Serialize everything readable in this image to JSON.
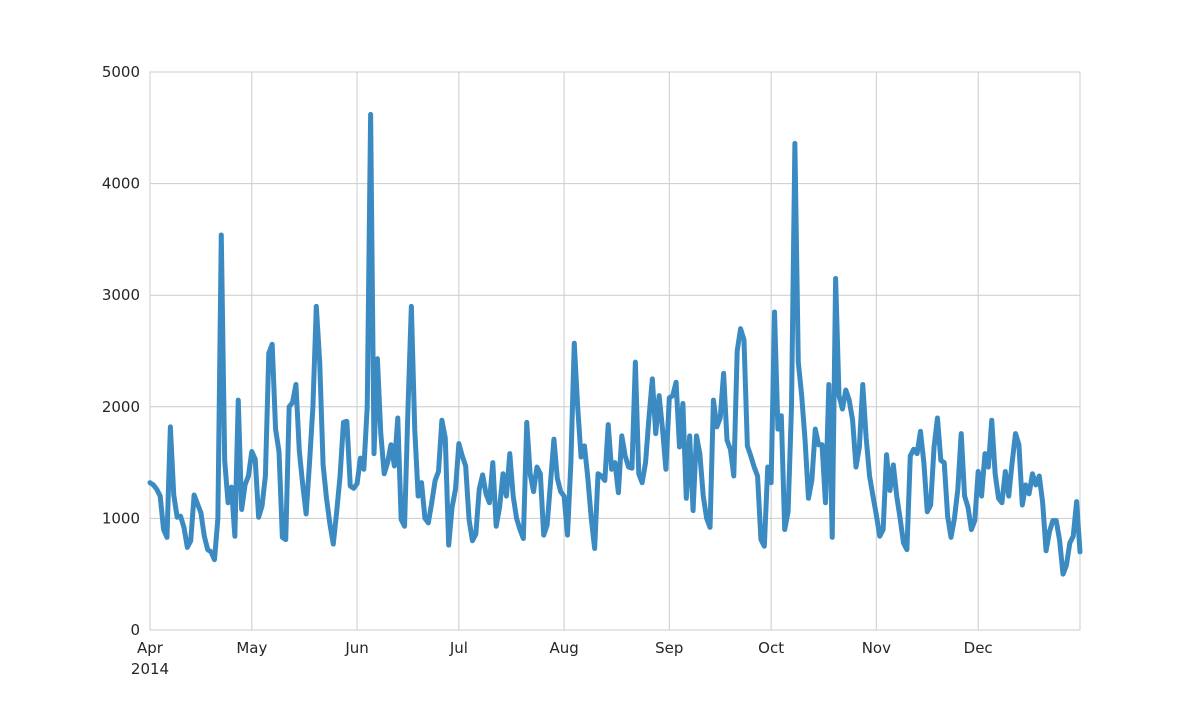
{
  "chart_data": {
    "type": "line",
    "title": "",
    "xlabel": "",
    "ylabel": "",
    "x_ticks": [
      {
        "label": "Apr",
        "date": "2014-04-01"
      },
      {
        "label": "May",
        "date": "2014-05-01"
      },
      {
        "label": "Jun",
        "date": "2014-06-01"
      },
      {
        "label": "Jul",
        "date": "2014-07-01"
      },
      {
        "label": "Aug",
        "date": "2014-08-01"
      },
      {
        "label": "Sep",
        "date": "2014-09-01"
      },
      {
        "label": "Oct",
        "date": "2014-10-01"
      },
      {
        "label": "Nov",
        "date": "2014-11-01"
      },
      {
        "label": "Dec",
        "date": "2014-12-01"
      }
    ],
    "x_year_label": "2014",
    "y_ticks": [
      0,
      1000,
      2000,
      3000,
      4000,
      5000
    ],
    "xlim": [
      "2014-04-01",
      "2014-12-31"
    ],
    "ylim": [
      0,
      5000
    ],
    "grid": true,
    "color": "#3b8bc2",
    "series": [
      {
        "points": [
          [
            "2014-04-01",
            1320
          ],
          [
            "2014-04-02",
            1300
          ],
          [
            "2014-04-03",
            1260
          ],
          [
            "2014-04-04",
            1200
          ],
          [
            "2014-04-05",
            900
          ],
          [
            "2014-04-06",
            830
          ],
          [
            "2014-04-07",
            1820
          ],
          [
            "2014-04-08",
            1210
          ],
          [
            "2014-04-09",
            1010
          ],
          [
            "2014-04-10",
            1020
          ],
          [
            "2014-04-11",
            920
          ],
          [
            "2014-04-12",
            740
          ],
          [
            "2014-04-13",
            800
          ],
          [
            "2014-04-14",
            1210
          ],
          [
            "2014-04-15",
            1130
          ],
          [
            "2014-04-16",
            1050
          ],
          [
            "2014-04-17",
            840
          ],
          [
            "2014-04-18",
            720
          ],
          [
            "2014-04-19",
            700
          ],
          [
            "2014-04-20",
            630
          ],
          [
            "2014-04-21",
            1000
          ],
          [
            "2014-04-22",
            3540
          ],
          [
            "2014-04-23",
            1520
          ],
          [
            "2014-04-24",
            1140
          ],
          [
            "2014-04-25",
            1280
          ],
          [
            "2014-04-26",
            840
          ],
          [
            "2014-04-27",
            2060
          ],
          [
            "2014-04-28",
            1080
          ],
          [
            "2014-04-29",
            1300
          ],
          [
            "2014-04-30",
            1380
          ],
          [
            "2014-05-01",
            1600
          ],
          [
            "2014-05-02",
            1530
          ],
          [
            "2014-05-03",
            1010
          ],
          [
            "2014-05-04",
            1110
          ],
          [
            "2014-05-05",
            1380
          ],
          [
            "2014-05-06",
            2480
          ],
          [
            "2014-05-07",
            2560
          ],
          [
            "2014-05-08",
            1800
          ],
          [
            "2014-05-09",
            1600
          ],
          [
            "2014-05-10",
            830
          ],
          [
            "2014-05-11",
            810
          ],
          [
            "2014-05-12",
            2000
          ],
          [
            "2014-05-13",
            2040
          ],
          [
            "2014-05-14",
            2200
          ],
          [
            "2014-05-15",
            1600
          ],
          [
            "2014-05-16",
            1300
          ],
          [
            "2014-05-17",
            1040
          ],
          [
            "2014-05-18",
            1500
          ],
          [
            "2014-05-19",
            2000
          ],
          [
            "2014-05-20",
            2900
          ],
          [
            "2014-05-21",
            2400
          ],
          [
            "2014-05-22",
            1480
          ],
          [
            "2014-05-23",
            1180
          ],
          [
            "2014-05-24",
            950
          ],
          [
            "2014-05-25",
            770
          ],
          [
            "2014-05-26",
            1060
          ],
          [
            "2014-05-27",
            1380
          ],
          [
            "2014-05-28",
            1860
          ],
          [
            "2014-05-29",
            1870
          ],
          [
            "2014-05-30",
            1290
          ],
          [
            "2014-05-31",
            1270
          ],
          [
            "2014-06-01",
            1310
          ],
          [
            "2014-06-02",
            1540
          ],
          [
            "2014-06-03",
            1440
          ],
          [
            "2014-06-04",
            2000
          ],
          [
            "2014-06-05",
            4620
          ],
          [
            "2014-06-06",
            1580
          ],
          [
            "2014-06-07",
            2430
          ],
          [
            "2014-06-08",
            1760
          ],
          [
            "2014-06-09",
            1400
          ],
          [
            "2014-06-10",
            1500
          ],
          [
            "2014-06-11",
            1660
          ],
          [
            "2014-06-12",
            1470
          ],
          [
            "2014-06-13",
            1900
          ],
          [
            "2014-06-14",
            990
          ],
          [
            "2014-06-15",
            930
          ],
          [
            "2014-06-16",
            1980
          ],
          [
            "2014-06-17",
            2900
          ],
          [
            "2014-06-18",
            1800
          ],
          [
            "2014-06-19",
            1200
          ],
          [
            "2014-06-20",
            1320
          ],
          [
            "2014-06-21",
            1000
          ],
          [
            "2014-06-22",
            960
          ],
          [
            "2014-06-23",
            1140
          ],
          [
            "2014-06-24",
            1340
          ],
          [
            "2014-06-25",
            1420
          ],
          [
            "2014-06-26",
            1880
          ],
          [
            "2014-06-27",
            1720
          ],
          [
            "2014-06-28",
            760
          ],
          [
            "2014-06-29",
            1100
          ],
          [
            "2014-06-30",
            1260
          ],
          [
            "2014-07-01",
            1670
          ],
          [
            "2014-07-02",
            1560
          ],
          [
            "2014-07-03",
            1470
          ],
          [
            "2014-07-04",
            990
          ],
          [
            "2014-07-05",
            800
          ],
          [
            "2014-07-06",
            860
          ],
          [
            "2014-07-07",
            1260
          ],
          [
            "2014-07-08",
            1390
          ],
          [
            "2014-07-09",
            1220
          ],
          [
            "2014-07-10",
            1140
          ],
          [
            "2014-07-11",
            1500
          ],
          [
            "2014-07-12",
            930
          ],
          [
            "2014-07-13",
            1100
          ],
          [
            "2014-07-14",
            1400
          ],
          [
            "2014-07-15",
            1200
          ],
          [
            "2014-07-16",
            1580
          ],
          [
            "2014-07-17",
            1200
          ],
          [
            "2014-07-18",
            1000
          ],
          [
            "2014-07-19",
            900
          ],
          [
            "2014-07-20",
            820
          ],
          [
            "2014-07-21",
            1860
          ],
          [
            "2014-07-22",
            1400
          ],
          [
            "2014-07-23",
            1240
          ],
          [
            "2014-07-24",
            1460
          ],
          [
            "2014-07-25",
            1400
          ],
          [
            "2014-07-26",
            850
          ],
          [
            "2014-07-27",
            940
          ],
          [
            "2014-07-28",
            1320
          ],
          [
            "2014-07-29",
            1710
          ],
          [
            "2014-07-30",
            1360
          ],
          [
            "2014-07-31",
            1240
          ],
          [
            "2014-08-01",
            1200
          ],
          [
            "2014-08-02",
            850
          ],
          [
            "2014-08-03",
            1500
          ],
          [
            "2014-08-04",
            2570
          ],
          [
            "2014-08-05",
            2000
          ],
          [
            "2014-08-06",
            1550
          ],
          [
            "2014-08-07",
            1650
          ],
          [
            "2014-08-08",
            1360
          ],
          [
            "2014-08-09",
            1000
          ],
          [
            "2014-08-10",
            730
          ],
          [
            "2014-08-11",
            1400
          ],
          [
            "2014-08-12",
            1380
          ],
          [
            "2014-08-13",
            1340
          ],
          [
            "2014-08-14",
            1840
          ],
          [
            "2014-08-15",
            1440
          ],
          [
            "2014-08-16",
            1500
          ],
          [
            "2014-08-17",
            1230
          ],
          [
            "2014-08-18",
            1740
          ],
          [
            "2014-08-19",
            1560
          ],
          [
            "2014-08-20",
            1460
          ],
          [
            "2014-08-21",
            1450
          ],
          [
            "2014-08-22",
            2400
          ],
          [
            "2014-08-23",
            1400
          ],
          [
            "2014-08-24",
            1320
          ],
          [
            "2014-08-25",
            1500
          ],
          [
            "2014-08-26",
            1900
          ],
          [
            "2014-08-27",
            2250
          ],
          [
            "2014-08-28",
            1760
          ],
          [
            "2014-08-29",
            2100
          ],
          [
            "2014-08-30",
            1800
          ],
          [
            "2014-08-31",
            1440
          ],
          [
            "2014-09-01",
            2080
          ],
          [
            "2014-09-02",
            2100
          ],
          [
            "2014-09-03",
            2220
          ],
          [
            "2014-09-04",
            1640
          ],
          [
            "2014-09-05",
            2030
          ],
          [
            "2014-09-06",
            1180
          ],
          [
            "2014-09-07",
            1740
          ],
          [
            "2014-09-08",
            1070
          ],
          [
            "2014-09-09",
            1740
          ],
          [
            "2014-09-10",
            1580
          ],
          [
            "2014-09-11",
            1200
          ],
          [
            "2014-09-12",
            1000
          ],
          [
            "2014-09-13",
            920
          ],
          [
            "2014-09-14",
            2060
          ],
          [
            "2014-09-15",
            1820
          ],
          [
            "2014-09-16",
            1900
          ],
          [
            "2014-09-17",
            2300
          ],
          [
            "2014-09-18",
            1700
          ],
          [
            "2014-09-19",
            1620
          ],
          [
            "2014-09-20",
            1380
          ],
          [
            "2014-09-21",
            2500
          ],
          [
            "2014-09-22",
            2700
          ],
          [
            "2014-09-23",
            2600
          ],
          [
            "2014-09-24",
            1650
          ],
          [
            "2014-09-25",
            1560
          ],
          [
            "2014-09-26",
            1460
          ],
          [
            "2014-09-27",
            1380
          ],
          [
            "2014-09-28",
            810
          ],
          [
            "2014-09-29",
            750
          ],
          [
            "2014-09-30",
            1460
          ],
          [
            "2014-10-01",
            1320
          ],
          [
            "2014-10-02",
            2850
          ],
          [
            "2014-10-03",
            1800
          ],
          [
            "2014-10-04",
            1920
          ],
          [
            "2014-10-05",
            900
          ],
          [
            "2014-10-06",
            1060
          ],
          [
            "2014-10-07",
            2000
          ],
          [
            "2014-10-08",
            4360
          ],
          [
            "2014-10-09",
            2400
          ],
          [
            "2014-10-10",
            2100
          ],
          [
            "2014-10-11",
            1700
          ],
          [
            "2014-10-12",
            1180
          ],
          [
            "2014-10-13",
            1340
          ],
          [
            "2014-10-14",
            1800
          ],
          [
            "2014-10-15",
            1660
          ],
          [
            "2014-10-16",
            1660
          ],
          [
            "2014-10-17",
            1140
          ],
          [
            "2014-10-18",
            2200
          ],
          [
            "2014-10-19",
            830
          ],
          [
            "2014-10-20",
            3150
          ],
          [
            "2014-10-21",
            2100
          ],
          [
            "2014-10-22",
            1980
          ],
          [
            "2014-10-23",
            2150
          ],
          [
            "2014-10-24",
            2060
          ],
          [
            "2014-10-25",
            1880
          ],
          [
            "2014-10-26",
            1460
          ],
          [
            "2014-10-27",
            1640
          ],
          [
            "2014-10-28",
            2200
          ],
          [
            "2014-10-29",
            1720
          ],
          [
            "2014-10-30",
            1380
          ],
          [
            "2014-10-31",
            1200
          ],
          [
            "2014-11-01",
            1030
          ],
          [
            "2014-11-02",
            840
          ],
          [
            "2014-11-03",
            900
          ],
          [
            "2014-11-04",
            1570
          ],
          [
            "2014-11-05",
            1250
          ],
          [
            "2014-11-06",
            1480
          ],
          [
            "2014-11-07",
            1200
          ],
          [
            "2014-11-08",
            1000
          ],
          [
            "2014-11-09",
            780
          ],
          [
            "2014-11-10",
            720
          ],
          [
            "2014-11-11",
            1560
          ],
          [
            "2014-11-12",
            1620
          ],
          [
            "2014-11-13",
            1580
          ],
          [
            "2014-11-14",
            1780
          ],
          [
            "2014-11-15",
            1500
          ],
          [
            "2014-11-16",
            1060
          ],
          [
            "2014-11-17",
            1120
          ],
          [
            "2014-11-18",
            1640
          ],
          [
            "2014-11-19",
            1900
          ],
          [
            "2014-11-20",
            1520
          ],
          [
            "2014-11-21",
            1500
          ],
          [
            "2014-11-22",
            1020
          ],
          [
            "2014-11-23",
            830
          ],
          [
            "2014-11-24",
            1000
          ],
          [
            "2014-11-25",
            1260
          ],
          [
            "2014-11-26",
            1760
          ],
          [
            "2014-11-27",
            1200
          ],
          [
            "2014-11-28",
            1100
          ],
          [
            "2014-11-29",
            900
          ],
          [
            "2014-11-30",
            980
          ],
          [
            "2014-12-01",
            1420
          ],
          [
            "2014-12-02",
            1200
          ],
          [
            "2014-12-03",
            1580
          ],
          [
            "2014-12-04",
            1460
          ],
          [
            "2014-12-05",
            1880
          ],
          [
            "2014-12-06",
            1400
          ],
          [
            "2014-12-07",
            1180
          ],
          [
            "2014-12-08",
            1140
          ],
          [
            "2014-12-09",
            1420
          ],
          [
            "2014-12-10",
            1200
          ],
          [
            "2014-12-11",
            1500
          ],
          [
            "2014-12-12",
            1760
          ],
          [
            "2014-12-13",
            1660
          ],
          [
            "2014-12-14",
            1120
          ],
          [
            "2014-12-15",
            1300
          ],
          [
            "2014-12-16",
            1220
          ],
          [
            "2014-12-17",
            1400
          ],
          [
            "2014-12-18",
            1300
          ],
          [
            "2014-12-19",
            1380
          ],
          [
            "2014-12-20",
            1140
          ],
          [
            "2014-12-21",
            710
          ],
          [
            "2014-12-22",
            880
          ],
          [
            "2014-12-23",
            980
          ],
          [
            "2014-12-24",
            980
          ],
          [
            "2014-12-25",
            800
          ],
          [
            "2014-12-26",
            500
          ],
          [
            "2014-12-27",
            580
          ],
          [
            "2014-12-28",
            780
          ],
          [
            "2014-12-29",
            840
          ],
          [
            "2014-12-30",
            1150
          ],
          [
            "2014-12-31",
            700
          ]
        ]
      }
    ]
  }
}
